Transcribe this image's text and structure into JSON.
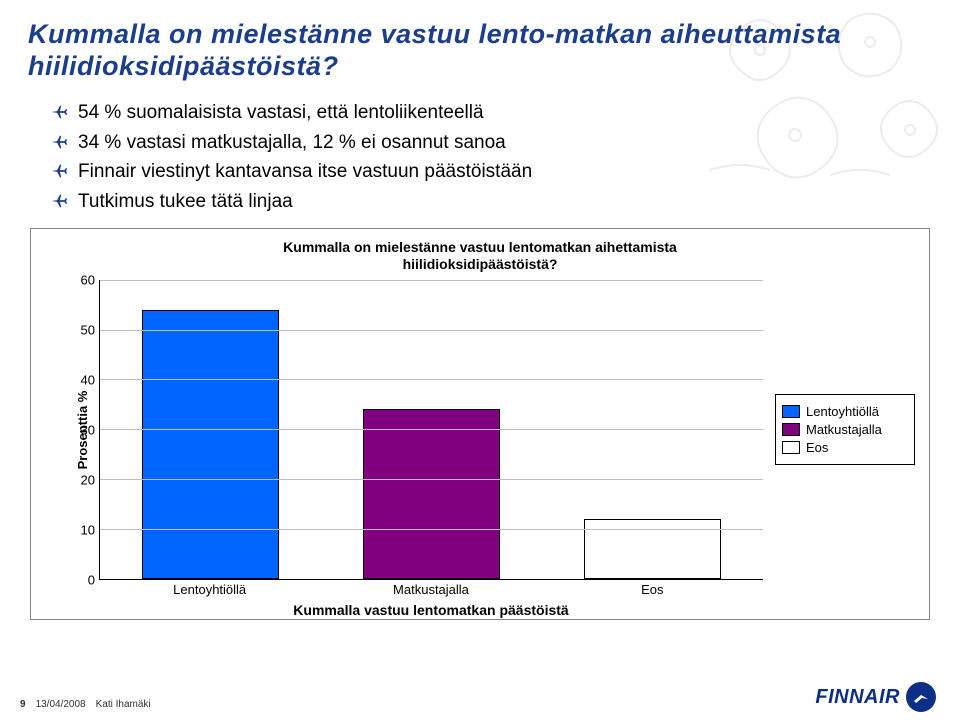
{
  "slide": {
    "title": "Kummalla on mielestänne vastuu lento-matkan aiheuttamista hiilidioksidipäästöistä?",
    "bullets": [
      "54 % suomalaisista vastasi, että lentoliikenteellä",
      "34 % vastasi matkustajalla, 12 % ei osannut sanoa",
      "Finnair viestinyt kantavansa itse vastuun päästöistään",
      "Tutkimus tukee tätä linjaa"
    ],
    "bullet_icon_color": "#1a3e8c"
  },
  "chart": {
    "type": "bar",
    "title_line1": "Kummalla on mielestänne vastuu lentomatkan aihettamista",
    "title_line2": "hiilidioksidipäästöistä?",
    "categories": [
      "Lentoyhtiöllä",
      "Matkustajalla",
      "Eos"
    ],
    "values": [
      54,
      34,
      12
    ],
    "bar_colors": [
      "#0066ff",
      "#800080",
      "#ffffff"
    ],
    "bar_border": "#000000",
    "background_color": "#ffffff",
    "grid_color": "#bcbcbc",
    "y_label": "Prosenttia %",
    "y_ticks": [
      0,
      10,
      20,
      30,
      40,
      50,
      60
    ],
    "y_max": 60,
    "x_axis_label": "Kummalla vastuu lentomatkan päästöistä",
    "legend": {
      "items": [
        {
          "label": "Lentoyhtiöllä",
          "color": "#0066ff"
        },
        {
          "label": "Matkustajalla",
          "color": "#800080"
        },
        {
          "label": "Eos",
          "color": "#ffffff"
        }
      ]
    },
    "bar_width": 0.62,
    "frame_border": "#888888",
    "title_fontsize": 14,
    "label_fontsize": 13
  },
  "footer": {
    "page": "9",
    "date": "13/04/2008",
    "author": "Kati Ihamäki"
  },
  "brand": {
    "logo_text": "FINNAIR",
    "logo_color": "#0b2e87"
  }
}
